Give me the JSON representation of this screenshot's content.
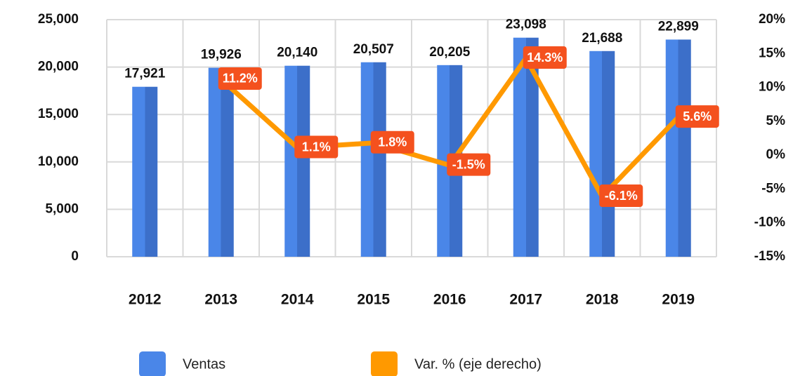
{
  "chart_data": {
    "type": "bar",
    "categories": [
      "2012",
      "2013",
      "2014",
      "2015",
      "2016",
      "2017",
      "2018",
      "2019"
    ],
    "series": [
      {
        "name": "Ventas",
        "color": "#4a86e8",
        "values": [
          17921,
          19926,
          20140,
          20507,
          20205,
          23098,
          21688,
          22899
        ],
        "value_labels": [
          "17,921",
          "19,926",
          "20,140",
          "20,507",
          "20,205",
          "23,098",
          "21,688",
          "22,899"
        ]
      },
      {
        "name": "Var. % (eje derecho)",
        "type": "line",
        "axis": "y2",
        "color": "#ff9900",
        "label_color": "#f4511e",
        "values": [
          null,
          11.2,
          1.1,
          1.8,
          -1.5,
          14.3,
          -6.1,
          5.6
        ],
        "value_labels": [
          null,
          "11.2%",
          "1.1%",
          "1.8%",
          "-1.5%",
          "14.3%",
          "-6.1%",
          "5.6%"
        ]
      }
    ],
    "ylim": [
      0,
      25000
    ],
    "yticks": [
      0,
      {
        "value": 5000,
        "label": "5,000"
      },
      {
        "value": 10000,
        "label": "10,000"
      },
      {
        "value": 15000,
        "label": "15,000"
      },
      {
        "value": 20000,
        "label": "20,000"
      },
      {
        "value": 25000,
        "label": "25,000"
      }
    ],
    "y2lim": [
      -15,
      20
    ],
    "y2ticks": [
      {
        "value": -15,
        "label": "-15%"
      },
      {
        "value": -10,
        "label": "-10%"
      },
      {
        "value": -5,
        "label": "-5%"
      },
      {
        "value": 0,
        "label": "0%"
      },
      {
        "value": 5,
        "label": "5%"
      },
      {
        "value": 10,
        "label": "10%"
      },
      {
        "value": 15,
        "label": "15%"
      },
      {
        "value": 20,
        "label": "20%"
      }
    ],
    "grid": true,
    "legend": "bottom"
  }
}
